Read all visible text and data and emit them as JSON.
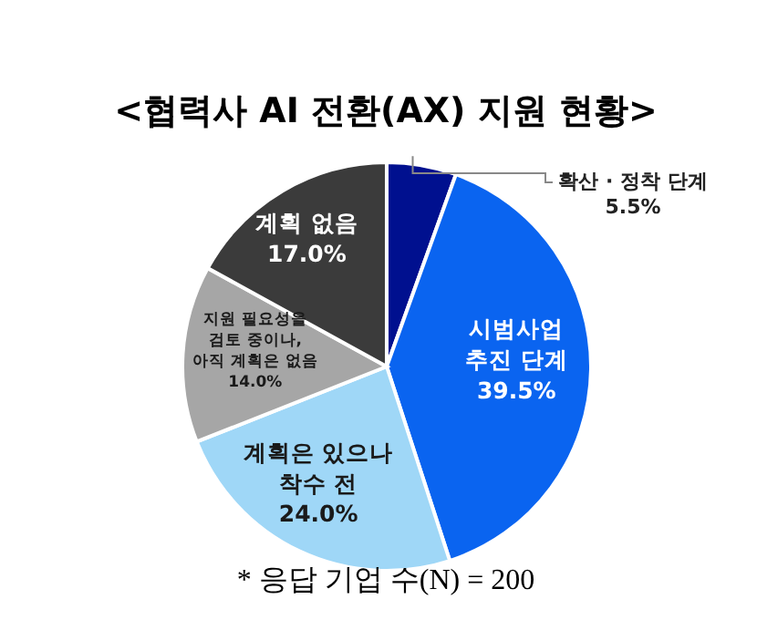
{
  "chart_data": {
    "type": "pie",
    "title": "<협력사 AI 전환(AX) 지원 현황>",
    "categories": [
      "확산 · 정착 단계",
      "시범사업\n추진 단계",
      "계획은 있으나\n착수 전",
      "지원 필요성을\n검토 중이나,\n아직 계획은 없음",
      "계획 없음"
    ],
    "values": [
      5.5,
      39.5,
      24.0,
      14.0,
      17.0
    ],
    "colors": [
      "#00108f",
      "#0a64f0",
      "#9fd7f7",
      "#a6a6a6",
      "#3b3b3b"
    ],
    "value_labels": [
      "5.5%",
      "39.5%",
      "24.0%",
      "14.0%",
      "17.0%"
    ],
    "annotations": [
      "* 응답 기업 수(N) = 200"
    ]
  }
}
